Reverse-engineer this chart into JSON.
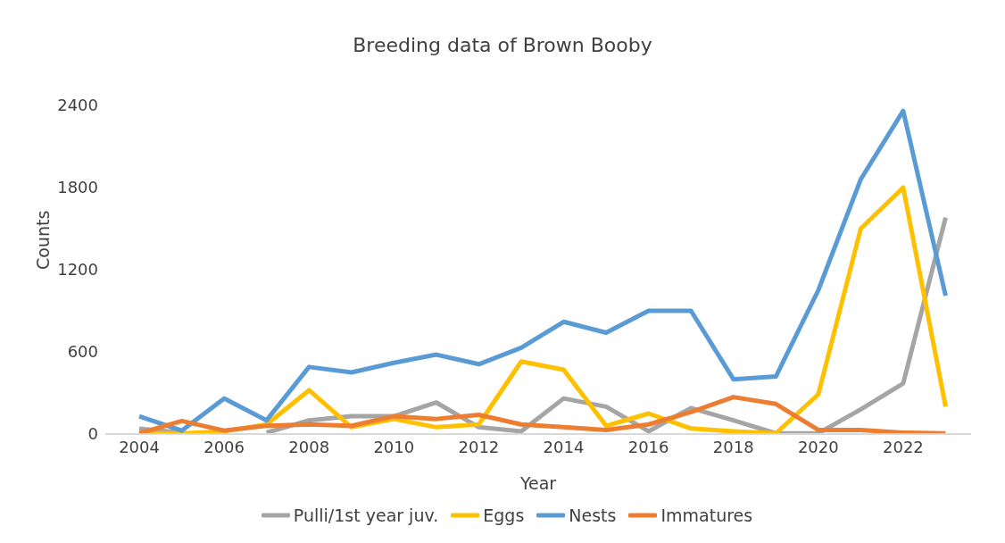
{
  "chart_data": {
    "type": "line",
    "title": "Breeding data of Brown Booby",
    "xlabel": "Year",
    "ylabel": "Counts",
    "x": [
      2004,
      2005,
      2006,
      2007,
      2008,
      2009,
      2010,
      2011,
      2012,
      2013,
      2014,
      2015,
      2016,
      2017,
      2018,
      2019,
      2020,
      2021,
      2022,
      2023
    ],
    "xlim": [
      2003.2,
      2023.6
    ],
    "xticks": [
      2004,
      2006,
      2008,
      2010,
      2012,
      2014,
      2016,
      2018,
      2020,
      2022
    ],
    "ylim": [
      0,
      2400
    ],
    "yticks": [
      0,
      600,
      1200,
      1800,
      2400
    ],
    "grid": false,
    "legend": "bottom",
    "marker": "none",
    "line_style": "solid",
    "series": [
      {
        "name": "Pulli/1st year juv.",
        "color": "#a5a5a5",
        "values": [
          40,
          10,
          null,
          10,
          100,
          130,
          130,
          230,
          50,
          20,
          260,
          200,
          20,
          190,
          100,
          5,
          5,
          180,
          370,
          1580
        ]
      },
      {
        "name": "Eggs",
        "color": "#ffc000",
        "values": [
          5,
          5,
          20,
          70,
          320,
          50,
          110,
          50,
          70,
          530,
          470,
          60,
          150,
          40,
          20,
          5,
          290,
          1500,
          1800,
          200
        ]
      },
      {
        "name": "Nests",
        "color": "#5b9bd5",
        "values": [
          130,
          25,
          260,
          100,
          490,
          450,
          520,
          580,
          510,
          630,
          820,
          740,
          900,
          900,
          400,
          420,
          1050,
          1860,
          2360,
          1010
        ]
      },
      {
        "name": "Immatures",
        "color": "#ed7d31",
        "values": [
          5,
          95,
          25,
          60,
          70,
          60,
          130,
          110,
          140,
          70,
          50,
          30,
          70,
          160,
          270,
          220,
          30,
          30,
          10,
          5
        ]
      }
    ]
  }
}
